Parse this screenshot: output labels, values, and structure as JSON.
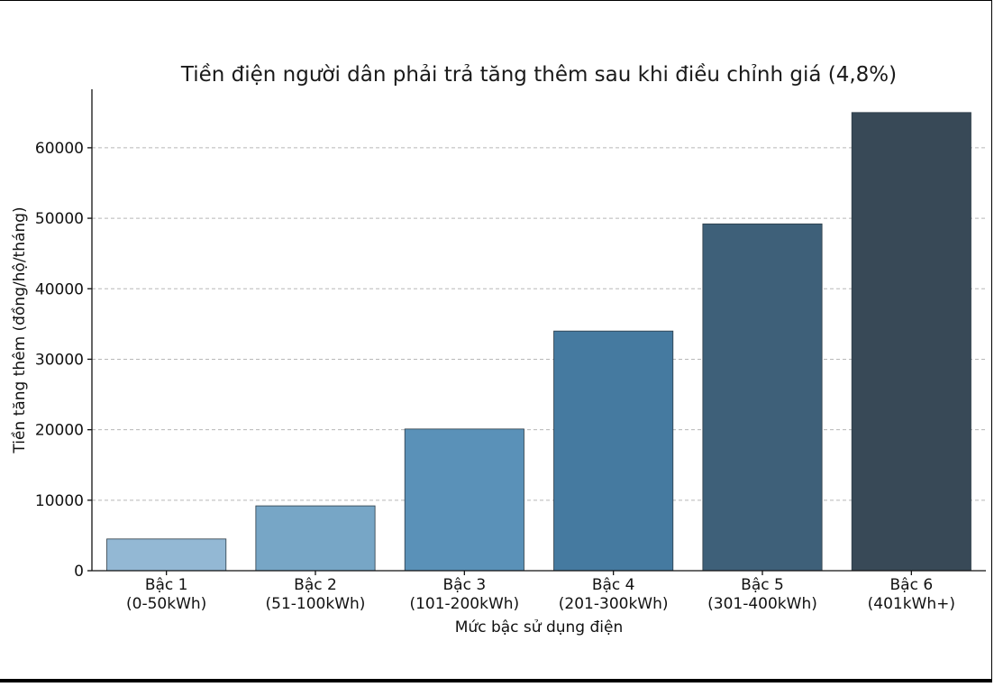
{
  "chart_data": {
    "type": "bar",
    "title": "Tiền điện người dân phải trả tăng thêm sau khi điều chỉnh giá (4,8%)",
    "xlabel": "Mức bậc sử dụng điện",
    "ylabel": "Tiền tăng thêm (đồng/hộ/tháng)",
    "categories": [
      [
        "Bậc 1",
        "(0-50kWh)"
      ],
      [
        "Bậc 2",
        "(51-100kWh)"
      ],
      [
        "Bậc 3",
        "(101-200kWh)"
      ],
      [
        "Bậc 4",
        "(201-300kWh)"
      ],
      [
        "Bậc 5",
        "(301-400kWh)"
      ],
      [
        "Bậc 6",
        "(401kWh+)"
      ]
    ],
    "values": [
      4500,
      9200,
      20100,
      34000,
      49200,
      65000
    ],
    "ylim": [
      0,
      68300
    ],
    "yticks": [
      0,
      10000,
      20000,
      30000,
      40000,
      50000,
      60000
    ],
    "grid": "y-dashed",
    "colors": [
      "#93b8d4",
      "#77a6c6",
      "#5a91b8",
      "#457aa0",
      "#3e6079",
      "#384957"
    ]
  }
}
